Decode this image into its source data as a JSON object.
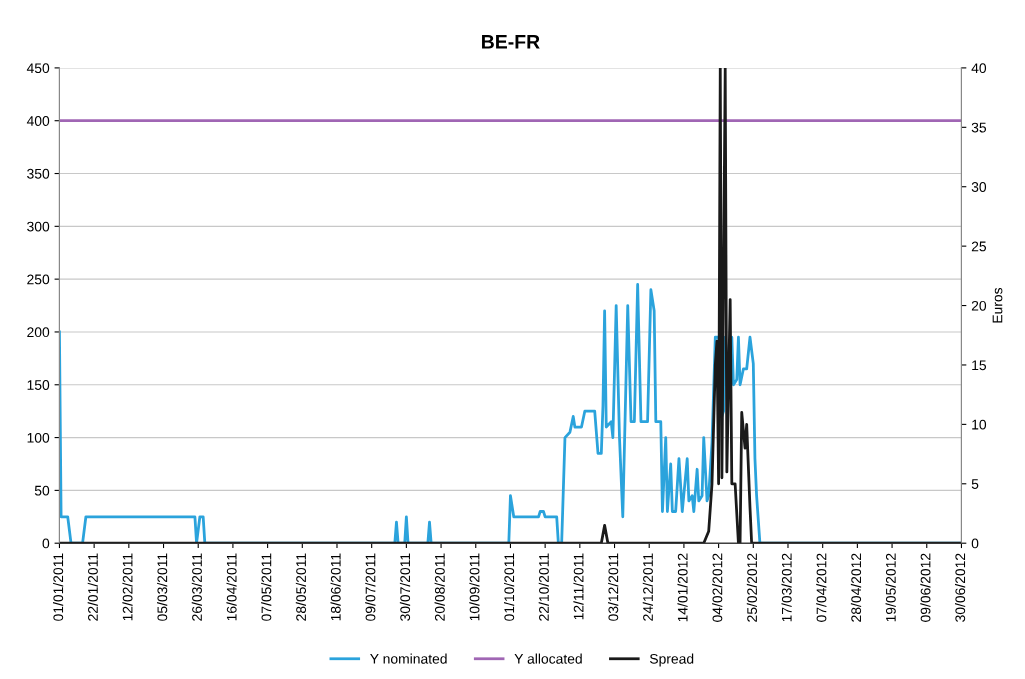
{
  "chart_data": {
    "type": "line",
    "title": "BE-FR",
    "y2label": "Euros",
    "xlim": [
      "2011-01-01",
      "2012-06-30"
    ],
    "xticks": [
      {
        "value": "2011-01-01",
        "label": "01/01/2011"
      },
      {
        "value": "2011-01-22",
        "label": "22/01/2011"
      },
      {
        "value": "2011-02-12",
        "label": "12/02/2011"
      },
      {
        "value": "2011-03-05",
        "label": "05/03/2011"
      },
      {
        "value": "2011-03-26",
        "label": "26/03/2011"
      },
      {
        "value": "2011-04-16",
        "label": "16/04/2011"
      },
      {
        "value": "2011-05-07",
        "label": "07/05/2011"
      },
      {
        "value": "2011-05-28",
        "label": "28/05/2011"
      },
      {
        "value": "2011-06-18",
        "label": "18/06/2011"
      },
      {
        "value": "2011-07-09",
        "label": "09/07/2011"
      },
      {
        "value": "2011-07-30",
        "label": "30/07/2011"
      },
      {
        "value": "2011-08-20",
        "label": "20/08/2011"
      },
      {
        "value": "2011-09-10",
        "label": "10/09/2011"
      },
      {
        "value": "2011-10-01",
        "label": "01/10/2011"
      },
      {
        "value": "2011-10-22",
        "label": "22/10/2011"
      },
      {
        "value": "2011-11-12",
        "label": "12/11/2011"
      },
      {
        "value": "2011-12-03",
        "label": "03/12/2011"
      },
      {
        "value": "2011-12-24",
        "label": "24/12/2011"
      },
      {
        "value": "2012-01-14",
        "label": "14/01/2012"
      },
      {
        "value": "2012-02-04",
        "label": "04/02/2012"
      },
      {
        "value": "2012-02-25",
        "label": "25/02/2012"
      },
      {
        "value": "2012-03-17",
        "label": "17/03/2012"
      },
      {
        "value": "2012-04-07",
        "label": "07/04/2012"
      },
      {
        "value": "2012-04-28",
        "label": "28/04/2012"
      },
      {
        "value": "2012-05-19",
        "label": "19/05/2012"
      },
      {
        "value": "2012-06-09",
        "label": "09/06/2012"
      },
      {
        "value": "2012-06-30",
        "label": "30/06/2012"
      }
    ],
    "ylim": [
      0,
      450
    ],
    "yticks": [
      0,
      50,
      100,
      150,
      200,
      250,
      300,
      350,
      400,
      450
    ],
    "y2lim": [
      0,
      40
    ],
    "y2ticks": [
      0,
      5,
      10,
      15,
      20,
      25,
      30,
      35,
      40
    ],
    "grid": "y",
    "legend": "bottom",
    "marker": "none",
    "line_style": "solid",
    "series": [
      {
        "name": "Y nominated",
        "color": "#2ba3dc",
        "x": [
          "2011-01-01",
          "2011-01-02",
          "2011-01-06",
          "2011-01-08",
          "2011-01-15",
          "2011-01-17",
          "2011-03-24",
          "2011-03-25",
          "2011-03-27",
          "2011-03-29",
          "2011-03-30",
          "2011-07-23",
          "2011-07-24",
          "2011-07-25",
          "2011-07-29",
          "2011-07-30",
          "2011-07-31",
          "2011-08-12",
          "2011-08-13",
          "2011-08-14",
          "2011-09-30",
          "2011-10-01",
          "2011-10-03",
          "2011-10-18",
          "2011-10-19",
          "2011-10-21",
          "2011-10-22",
          "2011-10-29",
          "2011-10-30",
          "2011-11-01",
          "2011-11-03",
          "2011-11-06",
          "2011-11-08",
          "2011-11-09",
          "2011-11-13",
          "2011-11-15",
          "2011-11-21",
          "2011-11-23",
          "2011-11-25",
          "2011-11-26",
          "2011-11-27",
          "2011-11-28",
          "2011-12-01",
          "2011-12-02",
          "2011-12-04",
          "2011-12-06",
          "2011-12-08",
          "2011-12-11",
          "2011-12-13",
          "2011-12-15",
          "2011-12-17",
          "2011-12-19",
          "2011-12-23",
          "2011-12-25",
          "2011-12-27",
          "2011-12-28",
          "2011-12-31",
          "2012-01-01",
          "2012-01-03",
          "2012-01-04",
          "2012-01-06",
          "2012-01-07",
          "2012-01-09",
          "2012-01-11",
          "2012-01-13",
          "2012-01-16",
          "2012-01-17",
          "2012-01-19",
          "2012-01-20",
          "2012-01-22",
          "2012-01-23",
          "2012-01-25",
          "2012-01-26",
          "2012-01-28",
          "2012-01-29",
          "2012-01-31",
          "2012-02-02",
          "2012-02-04",
          "2012-02-06",
          "2012-02-07",
          "2012-02-08",
          "2012-02-10",
          "2012-02-12",
          "2012-02-13",
          "2012-02-15",
          "2012-02-16",
          "2012-02-17",
          "2012-02-19",
          "2012-02-21",
          "2012-02-23",
          "2012-02-25",
          "2012-02-26",
          "2012-02-27",
          "2012-02-29",
          "2012-06-30"
        ],
        "values": [
          200,
          25,
          25,
          0,
          0,
          25,
          25,
          0,
          25,
          25,
          0,
          0,
          20,
          0,
          0,
          25,
          0,
          0,
          20,
          0,
          0,
          45,
          25,
          25,
          30,
          30,
          25,
          25,
          0,
          0,
          100,
          105,
          120,
          110,
          110,
          125,
          125,
          85,
          85,
          130,
          220,
          110,
          115,
          100,
          225,
          100,
          25,
          225,
          115,
          115,
          245,
          115,
          115,
          240,
          220,
          115,
          115,
          30,
          100,
          30,
          75,
          30,
          30,
          80,
          30,
          80,
          40,
          45,
          30,
          70,
          40,
          45,
          100,
          40,
          45,
          95,
          195,
          195,
          120,
          125,
          195,
          150,
          195,
          150,
          155,
          195,
          150,
          165,
          165,
          195,
          170,
          80,
          45,
          0,
          0
        ]
      },
      {
        "name": "Y allocated",
        "color": "#a066b4",
        "x": [
          "2011-01-01",
          "2012-06-30"
        ],
        "values": [
          400,
          400
        ]
      },
      {
        "name": "Spread",
        "color": "#1a1a1a",
        "axis": "y2",
        "x": [
          "2011-01-01",
          "2011-11-25",
          "2011-11-27",
          "2011-11-29",
          "2012-01-26",
          "2012-01-29",
          "2012-01-31",
          "2012-02-02",
          "2012-02-03",
          "2012-02-04",
          "2012-02-05",
          "2012-02-06",
          "2012-02-08",
          "2012-02-09",
          "2012-02-11",
          "2012-02-12",
          "2012-02-14",
          "2012-02-16",
          "2012-02-17",
          "2012-02-18",
          "2012-02-20",
          "2012-02-21",
          "2012-02-23",
          "2012-02-24",
          "2012-06-30"
        ],
        "values": [
          0,
          0,
          1.5,
          0,
          0,
          1,
          5,
          15,
          17,
          5,
          40,
          5.5,
          40,
          6,
          20.5,
          5,
          5,
          0,
          0,
          11,
          8,
          10,
          3,
          0,
          0
        ]
      }
    ]
  }
}
